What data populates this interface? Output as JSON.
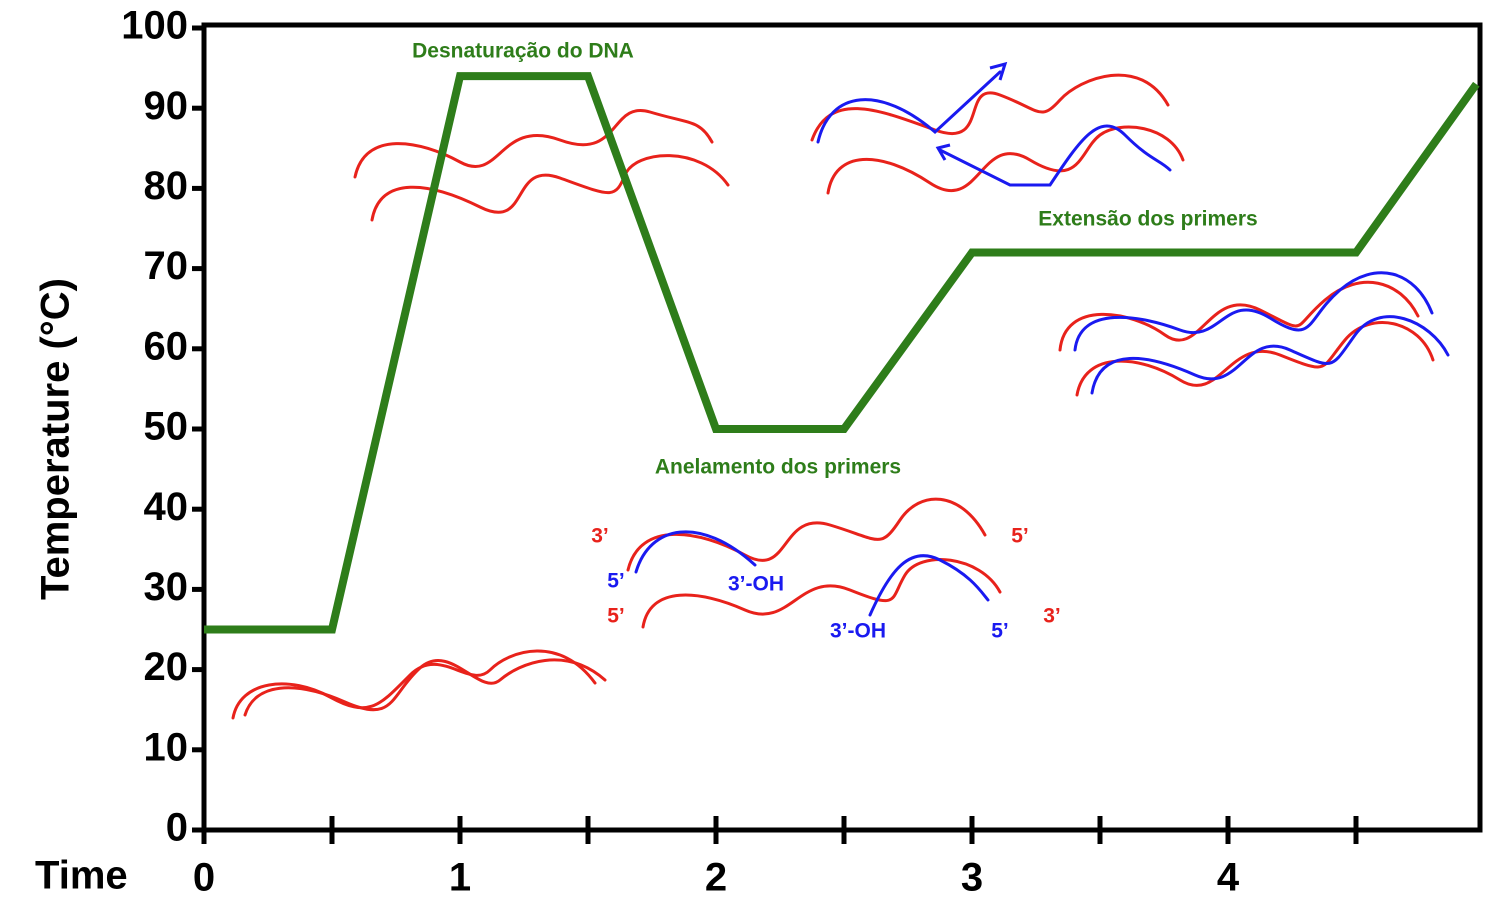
{
  "chart_data": {
    "type": "line",
    "x_label": "Time",
    "y_label": "Temperature (°C)",
    "x": [
      0,
      0.5,
      1,
      1.5,
      2,
      2.5,
      3,
      4.5,
      4.97
    ],
    "values": [
      25,
      25,
      94,
      94,
      50,
      50,
      72,
      72,
      93
    ],
    "color": "#2e7d1a",
    "xlim": [
      0,
      5
    ],
    "ylim": [
      0,
      100
    ],
    "xticks": [
      0,
      1,
      2,
      3,
      4
    ],
    "xminor_ticks": [
      0.5,
      1.5,
      2.5,
      3.5,
      4.5
    ],
    "yticks": [
      0,
      10,
      20,
      30,
      40,
      50,
      60,
      70,
      80,
      90,
      100
    ],
    "annotations": [
      {
        "text": "Desnaturação do DNA",
        "color": "#2e7d1a"
      },
      {
        "text": "Extensão dos primers",
        "color": "#2e7d1a"
      },
      {
        "text": "Anelamento dos primers",
        "color": "#2e7d1a"
      },
      {
        "text": "3’",
        "color": "#e8221b"
      },
      {
        "text": "5’",
        "color": "#e8221b"
      },
      {
        "text": "5’",
        "color": "#1a1af0"
      },
      {
        "text": "3’-OH",
        "color": "#1a1af0"
      },
      {
        "text": "5’",
        "color": "#e8221b"
      },
      {
        "text": "3’-OH",
        "color": "#1a1af0"
      },
      {
        "text": "5’",
        "color": "#1a1af0"
      },
      {
        "text": "3’",
        "color": "#e8221b"
      }
    ]
  }
}
